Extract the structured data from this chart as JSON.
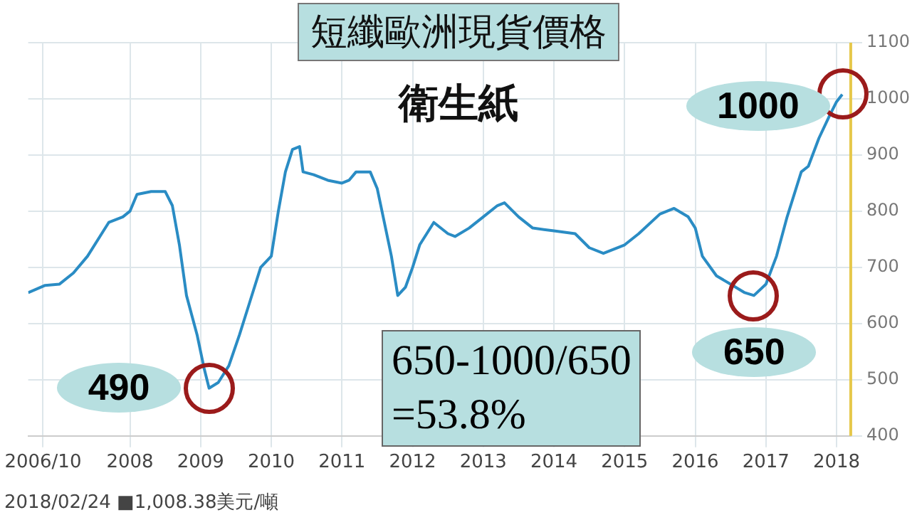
{
  "chart_data": {
    "type": "line",
    "title": "短纖歐洲現貨價格",
    "subtitle": "衛生紙",
    "x": [
      2006.56,
      2006.8,
      2007.0,
      2007.2,
      2007.4,
      2007.6,
      2007.7,
      2007.9,
      2008.0,
      2008.1,
      2008.3,
      2008.5,
      2008.6,
      2008.7,
      2008.8,
      2008.95,
      2009.05,
      2009.12,
      2009.25,
      2009.4,
      2009.55,
      2009.7,
      2009.85,
      2010.0,
      2010.1,
      2010.2,
      2010.3,
      2010.4,
      2010.45,
      2010.6,
      2010.8,
      2011.0,
      2011.1,
      2011.2,
      2011.4,
      2011.5,
      2011.6,
      2011.7,
      2011.79,
      2011.9,
      2012.0,
      2012.1,
      2012.3,
      2012.5,
      2012.6,
      2012.8,
      2013.0,
      2013.2,
      2013.3,
      2013.5,
      2013.7,
      2014.0,
      2014.3,
      2014.5,
      2014.7,
      2015.0,
      2015.2,
      2015.5,
      2015.7,
      2015.9,
      2016.0,
      2016.1,
      2016.3,
      2016.5,
      2016.7,
      2016.83,
      2017.0,
      2017.15,
      2017.3,
      2017.5,
      2017.6,
      2017.75,
      2017.9,
      2018.0,
      2018.08
    ],
    "series": [
      {
        "color": "#2a8cc4",
        "values": [
          655,
          668,
          670,
          690,
          720,
          760,
          780,
          790,
          800,
          830,
          835,
          835,
          810,
          740,
          650,
          580,
          520,
          485,
          495,
          525,
          580,
          640,
          700,
          720,
          800,
          870,
          910,
          915,
          870,
          865,
          855,
          850,
          855,
          870,
          870,
          840,
          780,
          720,
          650,
          665,
          700,
          740,
          780,
          760,
          755,
          770,
          790,
          810,
          815,
          790,
          770,
          765,
          760,
          735,
          725,
          740,
          760,
          795,
          805,
          790,
          770,
          720,
          685,
          670,
          655,
          650,
          670,
          720,
          790,
          870,
          880,
          930,
          970,
          995,
          1008
        ]
      }
    ],
    "xlim": [
      2006.56,
      2018.2
    ],
    "xticks": [
      {
        "value": 2006.77,
        "label": "2006/10"
      },
      2008,
      2009,
      2010,
      2011,
      2012,
      2013,
      2014,
      2015,
      2016,
      2017,
      2018
    ],
    "ylim": [
      400,
      1100
    ],
    "yticks": [
      400,
      500,
      600,
      700,
      800,
      900,
      1000,
      1100
    ],
    "grid": true,
    "legend": false,
    "marker": "none",
    "line_style": "solid",
    "annotations": [
      {
        "text": "490",
        "x": 2009.12,
        "y": 485
      },
      {
        "text": "650",
        "x": 2016.83,
        "y": 650
      },
      {
        "text": "1000",
        "x": 2018.08,
        "y": 1008
      },
      "650-1000/650\n=53.8%",
      "2018/02/24 ■1,008.38美元/噸"
    ]
  }
}
